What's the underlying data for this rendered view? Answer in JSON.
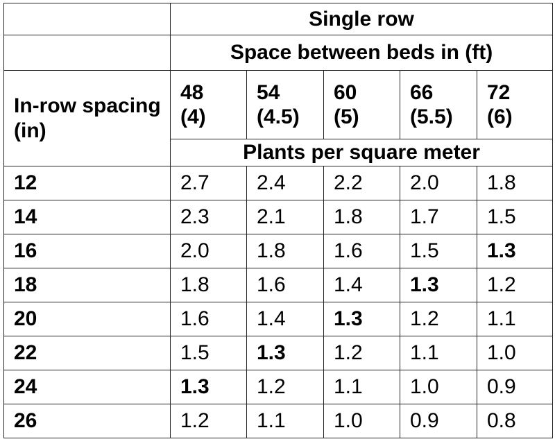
{
  "table": {
    "group_header": "Single row",
    "spacing_header": "Space between beds in (ft)",
    "stub_header": "In-row spacing (in)",
    "unit_header": "Plants per square meter",
    "columns": [
      {
        "value": "48",
        "sub": "(4)"
      },
      {
        "value": "54",
        "sub": "(4.5)"
      },
      {
        "value": "60",
        "sub": "(5)"
      },
      {
        "value": "66",
        "sub": "(5.5)"
      },
      {
        "value": "72",
        "sub": "(6)"
      }
    ],
    "rows": [
      {
        "spacing": "12",
        "cells": [
          "2.7",
          "2.4",
          "2.2",
          "2.0",
          "1.8"
        ],
        "bold": [
          false,
          false,
          false,
          false,
          false
        ]
      },
      {
        "spacing": "14",
        "cells": [
          "2.3",
          "2.1",
          "1.8",
          "1.7",
          "1.5"
        ],
        "bold": [
          false,
          false,
          false,
          false,
          false
        ]
      },
      {
        "spacing": "16",
        "cells": [
          "2.0",
          "1.8",
          "1.6",
          "1.5",
          "1.3"
        ],
        "bold": [
          false,
          false,
          false,
          false,
          true
        ]
      },
      {
        "spacing": "18",
        "cells": [
          "1.8",
          "1.6",
          "1.4",
          "1.3",
          "1.2"
        ],
        "bold": [
          false,
          false,
          false,
          true,
          false
        ]
      },
      {
        "spacing": "20",
        "cells": [
          "1.6",
          "1.4",
          "1.3",
          "1.2",
          "1.1"
        ],
        "bold": [
          false,
          false,
          true,
          false,
          false
        ]
      },
      {
        "spacing": "22",
        "cells": [
          "1.5",
          "1.3",
          "1.2",
          "1.1",
          "1.0"
        ],
        "bold": [
          false,
          true,
          false,
          false,
          false
        ]
      },
      {
        "spacing": "24",
        "cells": [
          "1.3",
          "1.2",
          "1.1",
          "1.0",
          "0.9"
        ],
        "bold": [
          true,
          false,
          false,
          false,
          false
        ]
      },
      {
        "spacing": "26",
        "cells": [
          "1.2",
          "1.1",
          "1.0",
          "0.9",
          "0.8"
        ],
        "bold": [
          false,
          false,
          false,
          false,
          false
        ]
      }
    ]
  }
}
